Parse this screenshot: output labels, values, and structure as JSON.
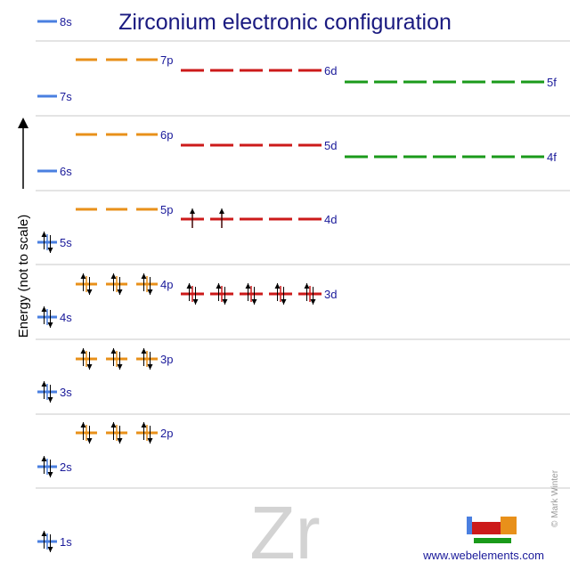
{
  "title": "Zirconium electronic configuration",
  "symbol": "Zr",
  "y_axis_label": "Energy (not to scale)",
  "website": "www.webelements.com",
  "copyright": "© Mark Winter",
  "colors": {
    "s": "#4a7fe0",
    "p": "#e8901a",
    "d": "#cc1a1a",
    "f": "#1a9a1a",
    "separator": "#c8c8c8",
    "label": "#1a1a9a"
  },
  "orbitals": [
    {
      "id": "1s",
      "label": "1s",
      "type": "s",
      "boxes": 1,
      "electrons": [
        2
      ]
    },
    {
      "id": "2s",
      "label": "2s",
      "type": "s",
      "boxes": 1,
      "electrons": [
        2
      ]
    },
    {
      "id": "2p",
      "label": "2p",
      "type": "p",
      "boxes": 3,
      "electrons": [
        2,
        2,
        2
      ]
    },
    {
      "id": "3s",
      "label": "3s",
      "type": "s",
      "boxes": 1,
      "electrons": [
        2
      ]
    },
    {
      "id": "3p",
      "label": "3p",
      "type": "p",
      "boxes": 3,
      "electrons": [
        2,
        2,
        2
      ]
    },
    {
      "id": "4s",
      "label": "4s",
      "type": "s",
      "boxes": 1,
      "electrons": [
        2
      ]
    },
    {
      "id": "3d",
      "label": "3d",
      "type": "d",
      "boxes": 5,
      "electrons": [
        2,
        2,
        2,
        2,
        2
      ]
    },
    {
      "id": "4p",
      "label": "4p",
      "type": "p",
      "boxes": 3,
      "electrons": [
        2,
        2,
        2
      ]
    },
    {
      "id": "5s",
      "label": "5s",
      "type": "s",
      "boxes": 1,
      "electrons": [
        2
      ]
    },
    {
      "id": "4d",
      "label": "4d",
      "type": "d",
      "boxes": 5,
      "electrons": [
        1,
        1,
        0,
        0,
        0
      ]
    },
    {
      "id": "5p",
      "label": "5p",
      "type": "p",
      "boxes": 3,
      "electrons": [
        0,
        0,
        0
      ]
    },
    {
      "id": "6s",
      "label": "6s",
      "type": "s",
      "boxes": 1,
      "electrons": [
        0
      ]
    },
    {
      "id": "4f",
      "label": "4f",
      "type": "f",
      "boxes": 7,
      "electrons": [
        0,
        0,
        0,
        0,
        0,
        0,
        0
      ]
    },
    {
      "id": "5d",
      "label": "5d",
      "type": "d",
      "boxes": 5,
      "electrons": [
        0,
        0,
        0,
        0,
        0
      ]
    },
    {
      "id": "6p",
      "label": "6p",
      "type": "p",
      "boxes": 3,
      "electrons": [
        0,
        0,
        0
      ]
    },
    {
      "id": "7s",
      "label": "7s",
      "type": "s",
      "boxes": 1,
      "electrons": [
        0
      ]
    },
    {
      "id": "5f",
      "label": "5f",
      "type": "f",
      "boxes": 7,
      "electrons": [
        0,
        0,
        0,
        0,
        0,
        0,
        0
      ]
    },
    {
      "id": "6d",
      "label": "6d",
      "type": "d",
      "boxes": 5,
      "electrons": [
        0,
        0,
        0,
        0,
        0
      ]
    },
    {
      "id": "7p",
      "label": "7p",
      "type": "p",
      "boxes": 3,
      "electrons": [
        0,
        0,
        0
      ]
    },
    {
      "id": "8s",
      "label": "8s",
      "type": "s",
      "boxes": 1,
      "electrons": [
        0
      ]
    }
  ]
}
